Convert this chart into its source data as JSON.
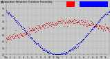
{
  "title": "Milwaukee Weather Outdoor Humidity",
  "bg_color": "#c8c8c8",
  "plot_bg_color": "#c8c8c8",
  "grid_color": "#999999",
  "red_color": "#cc0000",
  "blue_color": "#0000cc",
  "red_legend_color": "#ff0000",
  "blue_legend_color": "#0000ff",
  "ylim": [
    20,
    100
  ],
  "xlim": [
    0,
    287
  ],
  "n_points": 288,
  "title_fontsize": 2.8,
  "tick_fontsize": 2.2,
  "marker_size": 0.4,
  "x_tick_labels": [
    "12a",
    "1",
    "2",
    "3",
    "4",
    "5",
    "6",
    "7",
    "8",
    "9",
    "10",
    "11",
    "12p",
    "1",
    "2",
    "3",
    "4",
    "5",
    "6",
    "7",
    "8",
    "9",
    "10",
    "11"
  ],
  "y_tick_labels": [
    "20",
    "30",
    "40",
    "50",
    "60",
    "70",
    "80",
    "90",
    "100"
  ],
  "y_tick_vals": [
    20,
    30,
    40,
    50,
    60,
    70,
    80,
    90,
    100
  ]
}
